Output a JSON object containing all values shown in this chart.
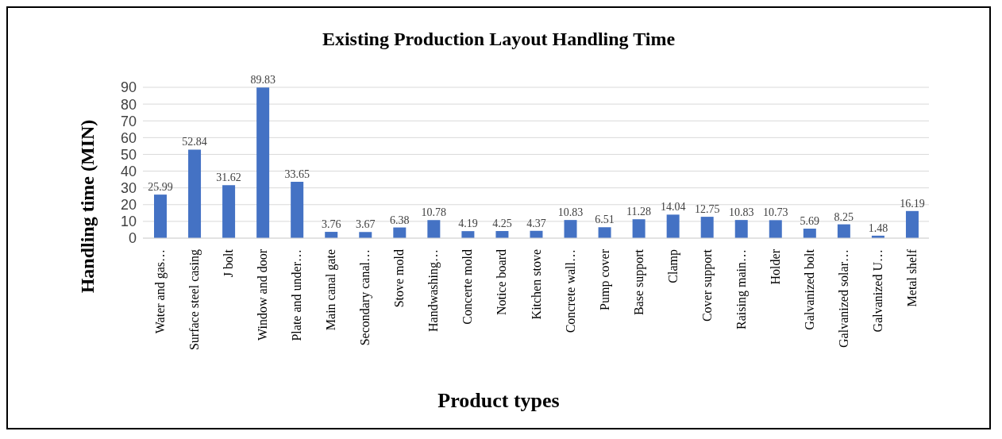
{
  "chart_data": {
    "type": "bar",
    "title": "Existing Production Layout Handling Time",
    "xlabel": "Product types",
    "ylabel": "Handling time (MIN)",
    "categories": [
      "Water and gas…",
      "Surface steel casing",
      "J bolt",
      "Window and door",
      "Plate and under…",
      "Main canal gate",
      "Secondary canal…",
      "Stove mold",
      "Handwashing…",
      "Concerte mold",
      "Notice board",
      "Kitchen stove",
      "Concrete wall…",
      "Pump cover",
      "Base support",
      "Clamp",
      "Cover support",
      "Raising main…",
      "Holder",
      "Galvanized bolt",
      "Galvanized solar…",
      "Galvanized U…",
      "Metal shelf"
    ],
    "values": [
      25.99,
      52.84,
      31.62,
      89.83,
      33.65,
      3.76,
      3.67,
      6.38,
      10.78,
      4.19,
      4.25,
      4.37,
      10.83,
      6.51,
      11.28,
      14.04,
      12.75,
      10.83,
      10.73,
      5.69,
      8.25,
      1.48,
      16.19
    ],
    "color": "#4472c4",
    "ylim": [
      0,
      90
    ],
    "yticks": [
      0,
      10,
      20,
      30,
      40,
      50,
      60,
      70,
      80,
      90
    ],
    "grid": "y",
    "data_labels": true,
    "legend": false
  }
}
